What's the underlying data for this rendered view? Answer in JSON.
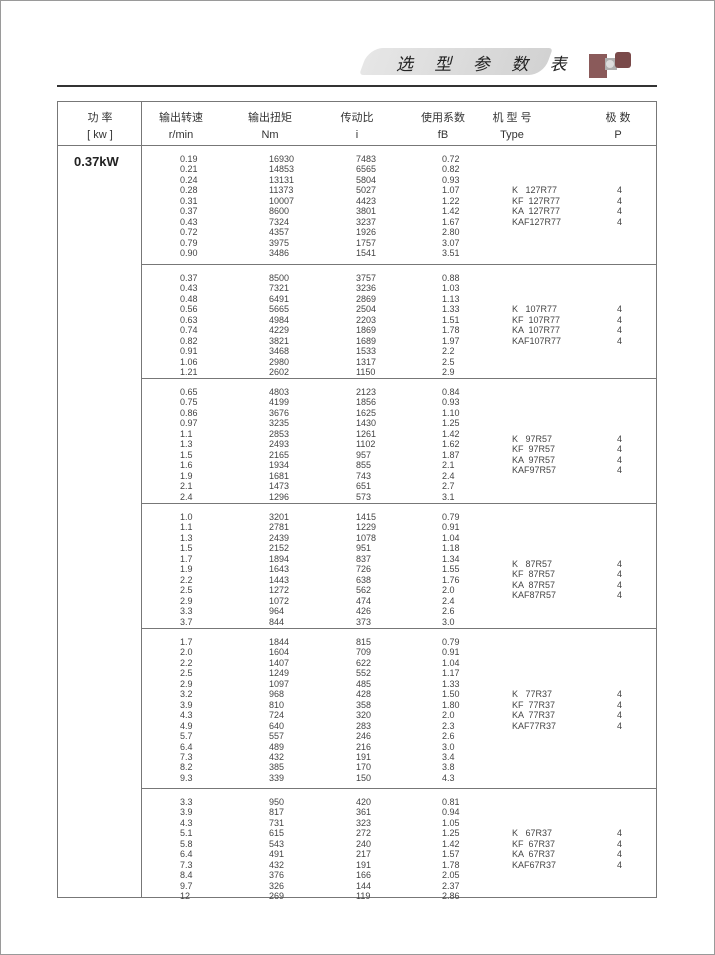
{
  "header": {
    "title": "选 型 参 数 表",
    "motor_image": "gearmotor-image"
  },
  "table": {
    "columns": [
      {
        "cn": "功  率",
        "unit": "[ kw ]"
      },
      {
        "cn": "输出转速",
        "unit": "r/min"
      },
      {
        "cn": "输出扭矩",
        "unit": "Nm"
      },
      {
        "cn": "传动比",
        "unit": "i"
      },
      {
        "cn": "使用系数",
        "unit": "fB"
      },
      {
        "cn": "机 型 号",
        "unit": "Type"
      },
      {
        "cn": "极  数",
        "unit": "P"
      }
    ],
    "power": "0.37kW",
    "blocks": [
      {
        "speed": [
          "0.19",
          "0.21",
          "0.24",
          "0.28",
          "0.31",
          "0.37",
          "0.43",
          "0.72",
          "0.79",
          "0.90"
        ],
        "torque": [
          "16930",
          "14853",
          "13131",
          "11373",
          "10007",
          "8600",
          "7324",
          "4357",
          "3975",
          "3486"
        ],
        "ratio": [
          "7483",
          "6565",
          "5804",
          "5027",
          "4423",
          "3801",
          "3237",
          "1926",
          "1757",
          "1541"
        ],
        "fb": [
          "0.72",
          "0.82",
          "0.93",
          "1.07",
          "1.22",
          "1.42",
          "1.67",
          "2.80",
          "3.07",
          "3.51"
        ],
        "types": [
          "K   127R77",
          "KF  127R77",
          "KA  127R77",
          "KAF127R77"
        ],
        "poles": [
          "4",
          "4",
          "4",
          "4"
        ]
      },
      {
        "speed": [
          "0.37",
          "0.43",
          "0.48",
          "0.56",
          "0.63",
          "0.74",
          "0.82",
          "0.91",
          "1.06",
          "1.21"
        ],
        "torque": [
          "8500",
          "7321",
          "6491",
          "5665",
          "4984",
          "4229",
          "3821",
          "3468",
          "2980",
          "2602"
        ],
        "ratio": [
          "3757",
          "3236",
          "2869",
          "2504",
          "2203",
          "1869",
          "1689",
          "1533",
          "1317",
          "1150"
        ],
        "fb": [
          "0.88",
          "1.03",
          "1.13",
          "1.33",
          "1.51",
          "1.78",
          "1.97",
          "2.2",
          "2.5",
          "2.9"
        ],
        "types": [
          "K   107R77",
          "KF  107R77",
          "KA  107R77",
          "KAF107R77"
        ],
        "poles": [
          "4",
          "4",
          "4",
          "4"
        ]
      },
      {
        "speed": [
          "0.65",
          "0.75",
          "0.86",
          "0.97",
          "1.1",
          "1.3",
          "1.5",
          "1.6",
          "1.9",
          "2.1",
          "2.4"
        ],
        "torque": [
          "4803",
          "4199",
          "3676",
          "3235",
          "2853",
          "2493",
          "2165",
          "1934",
          "1681",
          "1473",
          "1296"
        ],
        "ratio": [
          "2123",
          "1856",
          "1625",
          "1430",
          "1261",
          "1102",
          "957",
          "855",
          "743",
          "651",
          "573"
        ],
        "fb": [
          "0.84",
          "0.93",
          "1.10",
          "1.25",
          "1.42",
          "1.62",
          "1.87",
          "2.1",
          "2.4",
          "2.7",
          "3.1"
        ],
        "types": [
          "K   97R57",
          "KF  97R57",
          "KA  97R57",
          "KAF97R57"
        ],
        "poles": [
          "4",
          "4",
          "4",
          "4"
        ]
      },
      {
        "speed": [
          "1.0",
          "1.1",
          "1.3",
          "1.5",
          "1.7",
          "1.9",
          "2.2",
          "2.5",
          "2.9",
          "3.3",
          "3.7"
        ],
        "torque": [
          "3201",
          "2781",
          "2439",
          "2152",
          "1894",
          "1643",
          "1443",
          "1272",
          "1072",
          "964",
          "844"
        ],
        "ratio": [
          "1415",
          "1229",
          "1078",
          "951",
          "837",
          "726",
          "638",
          "562",
          "474",
          "426",
          "373"
        ],
        "fb": [
          "0.79",
          "0.91",
          "1.04",
          "1.18",
          "1.34",
          "1.55",
          "1.76",
          "2.0",
          "2.4",
          "2.6",
          "3.0"
        ],
        "types": [
          "K   87R57",
          "KF  87R57",
          "KA  87R57",
          "KAF87R57"
        ],
        "poles": [
          "4",
          "4",
          "4",
          "4"
        ]
      },
      {
        "speed": [
          "1.7",
          "2.0",
          "2.2",
          "2.5",
          "2.9",
          "3.2",
          "3.9",
          "4.3",
          "4.9",
          "5.7",
          "6.4",
          "7.3",
          "8.2",
          "9.3"
        ],
        "torque": [
          "1844",
          "1604",
          "1407",
          "1249",
          "1097",
          "968",
          "810",
          "724",
          "640",
          "557",
          "489",
          "432",
          "385",
          "339"
        ],
        "ratio": [
          "815",
          "709",
          "622",
          "552",
          "485",
          "428",
          "358",
          "320",
          "283",
          "246",
          "216",
          "191",
          "170",
          "150"
        ],
        "fb": [
          "0.79",
          "0.91",
          "1.04",
          "1.17",
          "1.33",
          "1.50",
          "1.80",
          "2.0",
          "2.3",
          "2.6",
          "3.0",
          "3.4",
          "3.8",
          "4.3"
        ],
        "types": [
          "K   77R37",
          "KF  77R37",
          "KA  77R37",
          "KAF77R37"
        ],
        "poles": [
          "4",
          "4",
          "4",
          "4"
        ]
      },
      {
        "speed": [
          "3.3",
          "3.9",
          "4.3",
          "5.1",
          "5.8",
          "6.4",
          "7.3",
          "8.4",
          "9.7",
          "12"
        ],
        "torque": [
          "950",
          "817",
          "731",
          "615",
          "543",
          "491",
          "432",
          "376",
          "326",
          "269"
        ],
        "ratio": [
          "420",
          "361",
          "323",
          "272",
          "240",
          "217",
          "191",
          "166",
          "144",
          "119"
        ],
        "fb": [
          "0.81",
          "0.94",
          "1.05",
          "1.25",
          "1.42",
          "1.57",
          "1.78",
          "2.05",
          "2.37",
          "2.86"
        ],
        "types": [
          "K   67R37",
          "KF  67R37",
          "KA  67R37",
          "KAF67R37"
        ],
        "poles": [
          "4",
          "4",
          "4",
          "4"
        ]
      }
    ]
  }
}
